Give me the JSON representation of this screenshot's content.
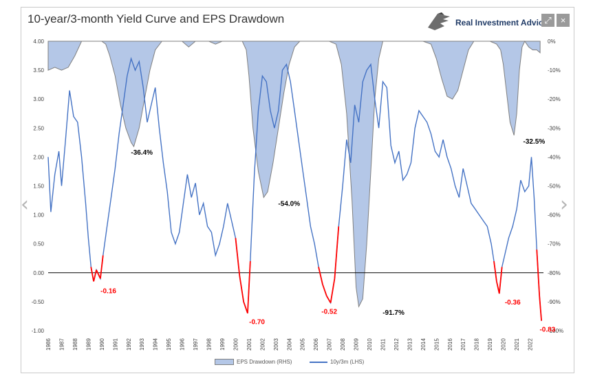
{
  "window": {
    "prev_arrow": "‹",
    "next_arrow": "›",
    "expand_glyph": "⤢",
    "close_glyph": "×"
  },
  "brand": {
    "name": "Real Investment Advice",
    "icon": "eagle-logo-icon"
  },
  "chart_data": {
    "type": "line",
    "title": "10-year/3-month Yield Curve and EPS Drawdown",
    "x_axis": {
      "type": "year",
      "range": [
        1986,
        2023
      ],
      "tick_labels": [
        "1986",
        "1987",
        "1988",
        "1989",
        "1990",
        "1991",
        "1992",
        "1993",
        "1994",
        "1995",
        "1996",
        "1997",
        "1998",
        "1999",
        "2000",
        "2001",
        "2002",
        "2003",
        "2004",
        "2005",
        "2006",
        "2007",
        "2008",
        "2009",
        "2010",
        "2011",
        "2012",
        "2013",
        "2014",
        "2015",
        "2016",
        "2017",
        "2018",
        "2019",
        "2020",
        "2021",
        "2022"
      ]
    },
    "y_left": {
      "range": [
        -1.0,
        4.0
      ],
      "tick_labels": [
        "4.00",
        "3.50",
        "3.00",
        "2.50",
        "2.00",
        "1.50",
        "1.00",
        "0.50",
        "0.00",
        "-0.50",
        "-1.00"
      ],
      "tick_values": [
        4.0,
        3.5,
        3.0,
        2.5,
        2.0,
        1.5,
        1.0,
        0.5,
        0.0,
        -0.5,
        -1.0
      ]
    },
    "y_right": {
      "range": [
        -100,
        0
      ],
      "tick_labels": [
        "0%",
        "-10%",
        "-20%",
        "-30%",
        "-40%",
        "-50%",
        "-60%",
        "-70%",
        "-80%",
        "-90%",
        "-100%"
      ],
      "tick_values": [
        0,
        -10,
        -20,
        -30,
        -40,
        -50,
        -60,
        -70,
        -80,
        -90,
        -100
      ]
    },
    "grid": false,
    "zero_line": true,
    "colors": {
      "area_fill": "#b4c7e7",
      "area_stroke": "#7f7f7f",
      "line": "#4472c4",
      "inversion": "#ff0000",
      "annotation_red": "#ff0000",
      "annotation_black": "#000000"
    },
    "series": [
      {
        "name": "EPS Drawdown (RHS)",
        "type": "area",
        "axis": "right",
        "points": [
          [
            1986.0,
            -10
          ],
          [
            1986.5,
            -9
          ],
          [
            1987.0,
            -10
          ],
          [
            1987.5,
            -9
          ],
          [
            1988.0,
            -5
          ],
          [
            1988.5,
            0
          ],
          [
            1989.0,
            0
          ],
          [
            1989.5,
            0
          ],
          [
            1990.0,
            0
          ],
          [
            1990.3,
            -1
          ],
          [
            1990.6,
            -5
          ],
          [
            1991.0,
            -12
          ],
          [
            1991.4,
            -22
          ],
          [
            1991.8,
            -30
          ],
          [
            1992.2,
            -35
          ],
          [
            1992.4,
            -36.4
          ],
          [
            1992.8,
            -30
          ],
          [
            1993.2,
            -20
          ],
          [
            1993.6,
            -10
          ],
          [
            1994.0,
            -3
          ],
          [
            1994.5,
            0
          ],
          [
            1995.0,
            0
          ],
          [
            1995.5,
            0
          ],
          [
            1996.0,
            0
          ],
          [
            1996.5,
            -2
          ],
          [
            1997.0,
            0
          ],
          [
            1998.0,
            0
          ],
          [
            1998.5,
            -1
          ],
          [
            1999.0,
            0
          ],
          [
            1999.5,
            0
          ],
          [
            2000.0,
            0
          ],
          [
            2000.5,
            0
          ],
          [
            2000.8,
            -3
          ],
          [
            2001.0,
            -12
          ],
          [
            2001.3,
            -30
          ],
          [
            2001.7,
            -45
          ],
          [
            2002.1,
            -54
          ],
          [
            2002.4,
            -52
          ],
          [
            2002.8,
            -42
          ],
          [
            2003.2,
            -30
          ],
          [
            2003.6,
            -18
          ],
          [
            2004.0,
            -8
          ],
          [
            2004.4,
            -2
          ],
          [
            2004.8,
            0
          ],
          [
            2005.5,
            0
          ],
          [
            2006.0,
            0
          ],
          [
            2006.5,
            0
          ],
          [
            2007.0,
            0
          ],
          [
            2007.5,
            -1
          ],
          [
            2007.9,
            -8
          ],
          [
            2008.3,
            -25
          ],
          [
            2008.7,
            -55
          ],
          [
            2009.0,
            -85
          ],
          [
            2009.2,
            -91.7
          ],
          [
            2009.5,
            -89
          ],
          [
            2009.8,
            -70
          ],
          [
            2010.1,
            -45
          ],
          [
            2010.4,
            -20
          ],
          [
            2010.7,
            -6
          ],
          [
            2011.0,
            0
          ],
          [
            2011.5,
            0
          ],
          [
            2012.0,
            0
          ],
          [
            2013.0,
            0
          ],
          [
            2014.0,
            0
          ],
          [
            2014.6,
            -1
          ],
          [
            2015.0,
            -6
          ],
          [
            2015.4,
            -13
          ],
          [
            2015.8,
            -19
          ],
          [
            2016.2,
            -20
          ],
          [
            2016.6,
            -17
          ],
          [
            2017.0,
            -10
          ],
          [
            2017.4,
            -3
          ],
          [
            2017.8,
            0
          ],
          [
            2018.5,
            0
          ],
          [
            2019.0,
            0
          ],
          [
            2019.5,
            -1
          ],
          [
            2019.8,
            -3
          ],
          [
            2020.0,
            -8
          ],
          [
            2020.3,
            -20
          ],
          [
            2020.5,
            -28
          ],
          [
            2020.8,
            -32.5
          ],
          [
            2021.0,
            -25
          ],
          [
            2021.2,
            -10
          ],
          [
            2021.4,
            -2
          ],
          [
            2021.6,
            0
          ],
          [
            2021.9,
            -2
          ],
          [
            2022.2,
            -3
          ],
          [
            2022.5,
            -3
          ],
          [
            2022.75,
            -4
          ]
        ]
      },
      {
        "name": "10y/3m (LHS)",
        "type": "line",
        "axis": "left",
        "points": [
          [
            1986.0,
            2.0
          ],
          [
            1986.2,
            1.05
          ],
          [
            1986.5,
            1.7
          ],
          [
            1986.8,
            2.1
          ],
          [
            1987.0,
            1.5
          ],
          [
            1987.3,
            2.3
          ],
          [
            1987.6,
            3.15
          ],
          [
            1987.9,
            2.7
          ],
          [
            1988.2,
            2.6
          ],
          [
            1988.5,
            2.0
          ],
          [
            1988.8,
            1.2
          ],
          [
            1989.0,
            0.6
          ],
          [
            1989.2,
            0.1
          ],
          [
            1989.4,
            -0.15
          ],
          [
            1989.6,
            0.05
          ],
          [
            1989.9,
            -0.1
          ],
          [
            1990.1,
            0.3
          ],
          [
            1990.4,
            0.8
          ],
          [
            1990.7,
            1.3
          ],
          [
            1991.0,
            1.8
          ],
          [
            1991.3,
            2.4
          ],
          [
            1991.6,
            2.9
          ],
          [
            1991.9,
            3.4
          ],
          [
            1992.2,
            3.7
          ],
          [
            1992.5,
            3.5
          ],
          [
            1992.8,
            3.65
          ],
          [
            1993.1,
            3.2
          ],
          [
            1993.4,
            2.6
          ],
          [
            1993.7,
            2.9
          ],
          [
            1994.0,
            3.2
          ],
          [
            1994.3,
            2.5
          ],
          [
            1994.6,
            1.9
          ],
          [
            1994.9,
            1.4
          ],
          [
            1995.2,
            0.7
          ],
          [
            1995.5,
            0.5
          ],
          [
            1995.8,
            0.7
          ],
          [
            1996.1,
            1.2
          ],
          [
            1996.4,
            1.7
          ],
          [
            1996.7,
            1.3
          ],
          [
            1997.0,
            1.55
          ],
          [
            1997.3,
            1.0
          ],
          [
            1997.6,
            1.2
          ],
          [
            1997.9,
            0.8
          ],
          [
            1998.2,
            0.7
          ],
          [
            1998.5,
            0.3
          ],
          [
            1998.8,
            0.5
          ],
          [
            1999.1,
            0.8
          ],
          [
            1999.4,
            1.2
          ],
          [
            1999.7,
            0.9
          ],
          [
            2000.0,
            0.6
          ],
          [
            2000.3,
            -0.05
          ],
          [
            2000.6,
            -0.5
          ],
          [
            2000.9,
            -0.7
          ],
          [
            2001.1,
            0.2
          ],
          [
            2001.4,
            1.7
          ],
          [
            2001.7,
            2.8
          ],
          [
            2002.0,
            3.4
          ],
          [
            2002.3,
            3.3
          ],
          [
            2002.6,
            2.8
          ],
          [
            2002.9,
            2.5
          ],
          [
            2003.2,
            2.8
          ],
          [
            2003.5,
            3.5
          ],
          [
            2003.8,
            3.6
          ],
          [
            2004.1,
            3.3
          ],
          [
            2004.4,
            2.8
          ],
          [
            2004.7,
            2.3
          ],
          [
            2005.0,
            1.8
          ],
          [
            2005.3,
            1.3
          ],
          [
            2005.6,
            0.8
          ],
          [
            2005.9,
            0.5
          ],
          [
            2006.2,
            0.1
          ],
          [
            2006.5,
            -0.2
          ],
          [
            2006.8,
            -0.4
          ],
          [
            2007.1,
            -0.52
          ],
          [
            2007.4,
            -0.1
          ],
          [
            2007.7,
            0.8
          ],
          [
            2008.0,
            1.5
          ],
          [
            2008.3,
            2.3
          ],
          [
            2008.6,
            1.9
          ],
          [
            2008.9,
            2.9
          ],
          [
            2009.2,
            2.6
          ],
          [
            2009.5,
            3.3
          ],
          [
            2009.8,
            3.5
          ],
          [
            2010.1,
            3.6
          ],
          [
            2010.4,
            3.0
          ],
          [
            2010.7,
            2.5
          ],
          [
            2011.0,
            3.3
          ],
          [
            2011.3,
            3.2
          ],
          [
            2011.6,
            2.2
          ],
          [
            2011.9,
            1.9
          ],
          [
            2012.2,
            2.1
          ],
          [
            2012.5,
            1.6
          ],
          [
            2012.8,
            1.7
          ],
          [
            2013.1,
            1.9
          ],
          [
            2013.4,
            2.5
          ],
          [
            2013.7,
            2.8
          ],
          [
            2014.0,
            2.7
          ],
          [
            2014.3,
            2.6
          ],
          [
            2014.6,
            2.4
          ],
          [
            2014.9,
            2.1
          ],
          [
            2015.2,
            2.0
          ],
          [
            2015.5,
            2.3
          ],
          [
            2015.8,
            2.0
          ],
          [
            2016.1,
            1.8
          ],
          [
            2016.4,
            1.5
          ],
          [
            2016.7,
            1.3
          ],
          [
            2017.0,
            1.8
          ],
          [
            2017.3,
            1.5
          ],
          [
            2017.6,
            1.2
          ],
          [
            2017.9,
            1.1
          ],
          [
            2018.2,
            1.0
          ],
          [
            2018.5,
            0.9
          ],
          [
            2018.8,
            0.8
          ],
          [
            2019.1,
            0.5
          ],
          [
            2019.3,
            0.2
          ],
          [
            2019.5,
            -0.15
          ],
          [
            2019.7,
            -0.36
          ],
          [
            2019.9,
            0.1
          ],
          [
            2020.1,
            0.3
          ],
          [
            2020.4,
            0.6
          ],
          [
            2020.7,
            0.8
          ],
          [
            2021.0,
            1.1
          ],
          [
            2021.3,
            1.6
          ],
          [
            2021.6,
            1.4
          ],
          [
            2021.9,
            1.5
          ],
          [
            2022.1,
            2.0
          ],
          [
            2022.3,
            1.3
          ],
          [
            2022.5,
            0.4
          ],
          [
            2022.7,
            -0.4
          ],
          [
            2022.85,
            -0.83
          ]
        ]
      }
    ],
    "annotations": [
      {
        "text": "-36.4%",
        "x": 1993.0,
        "y_right": -36.4,
        "color": "#000000"
      },
      {
        "text": "-54.0%",
        "x": 2004.0,
        "y_right": -54.0,
        "color": "#000000"
      },
      {
        "text": "-91.7%",
        "x": 2011.8,
        "y_right": -91.7,
        "color": "#000000"
      },
      {
        "text": "-32.5%",
        "x": 2022.3,
        "y_right": -32.5,
        "color": "#000000"
      },
      {
        "text": "-0.16",
        "x": 1990.5,
        "y_left": -0.16,
        "color": "#ff0000"
      },
      {
        "text": "-0.70",
        "x": 2001.6,
        "y_left": -0.7,
        "color": "#ff0000"
      },
      {
        "text": "-0.52",
        "x": 2007.0,
        "y_left": -0.52,
        "color": "#ff0000"
      },
      {
        "text": "-0.36",
        "x": 2020.7,
        "y_left": -0.36,
        "color": "#ff0000"
      },
      {
        "text": "-0.83",
        "x": 2023.3,
        "y_left": -0.83,
        "color": "#ff0000"
      }
    ],
    "legend": {
      "position": "bottom",
      "items": [
        "EPS Drawdown (RHS)",
        "10y/3m (LHS)"
      ]
    }
  }
}
